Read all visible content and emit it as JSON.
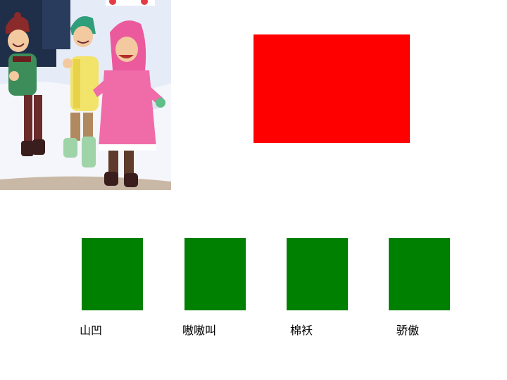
{
  "colors": {
    "red_box": "#ff0000",
    "green_box": "#008000",
    "snow_sky": "#dfe6f3",
    "night_sky": "#1f2f4a"
  },
  "illustration": {
    "icon": "children-in-snow-illustration"
  },
  "words": [
    {
      "text": "山凹"
    },
    {
      "text": "嗷嗷叫"
    },
    {
      "text": "棉袄"
    },
    {
      "text": "骄傲"
    }
  ]
}
